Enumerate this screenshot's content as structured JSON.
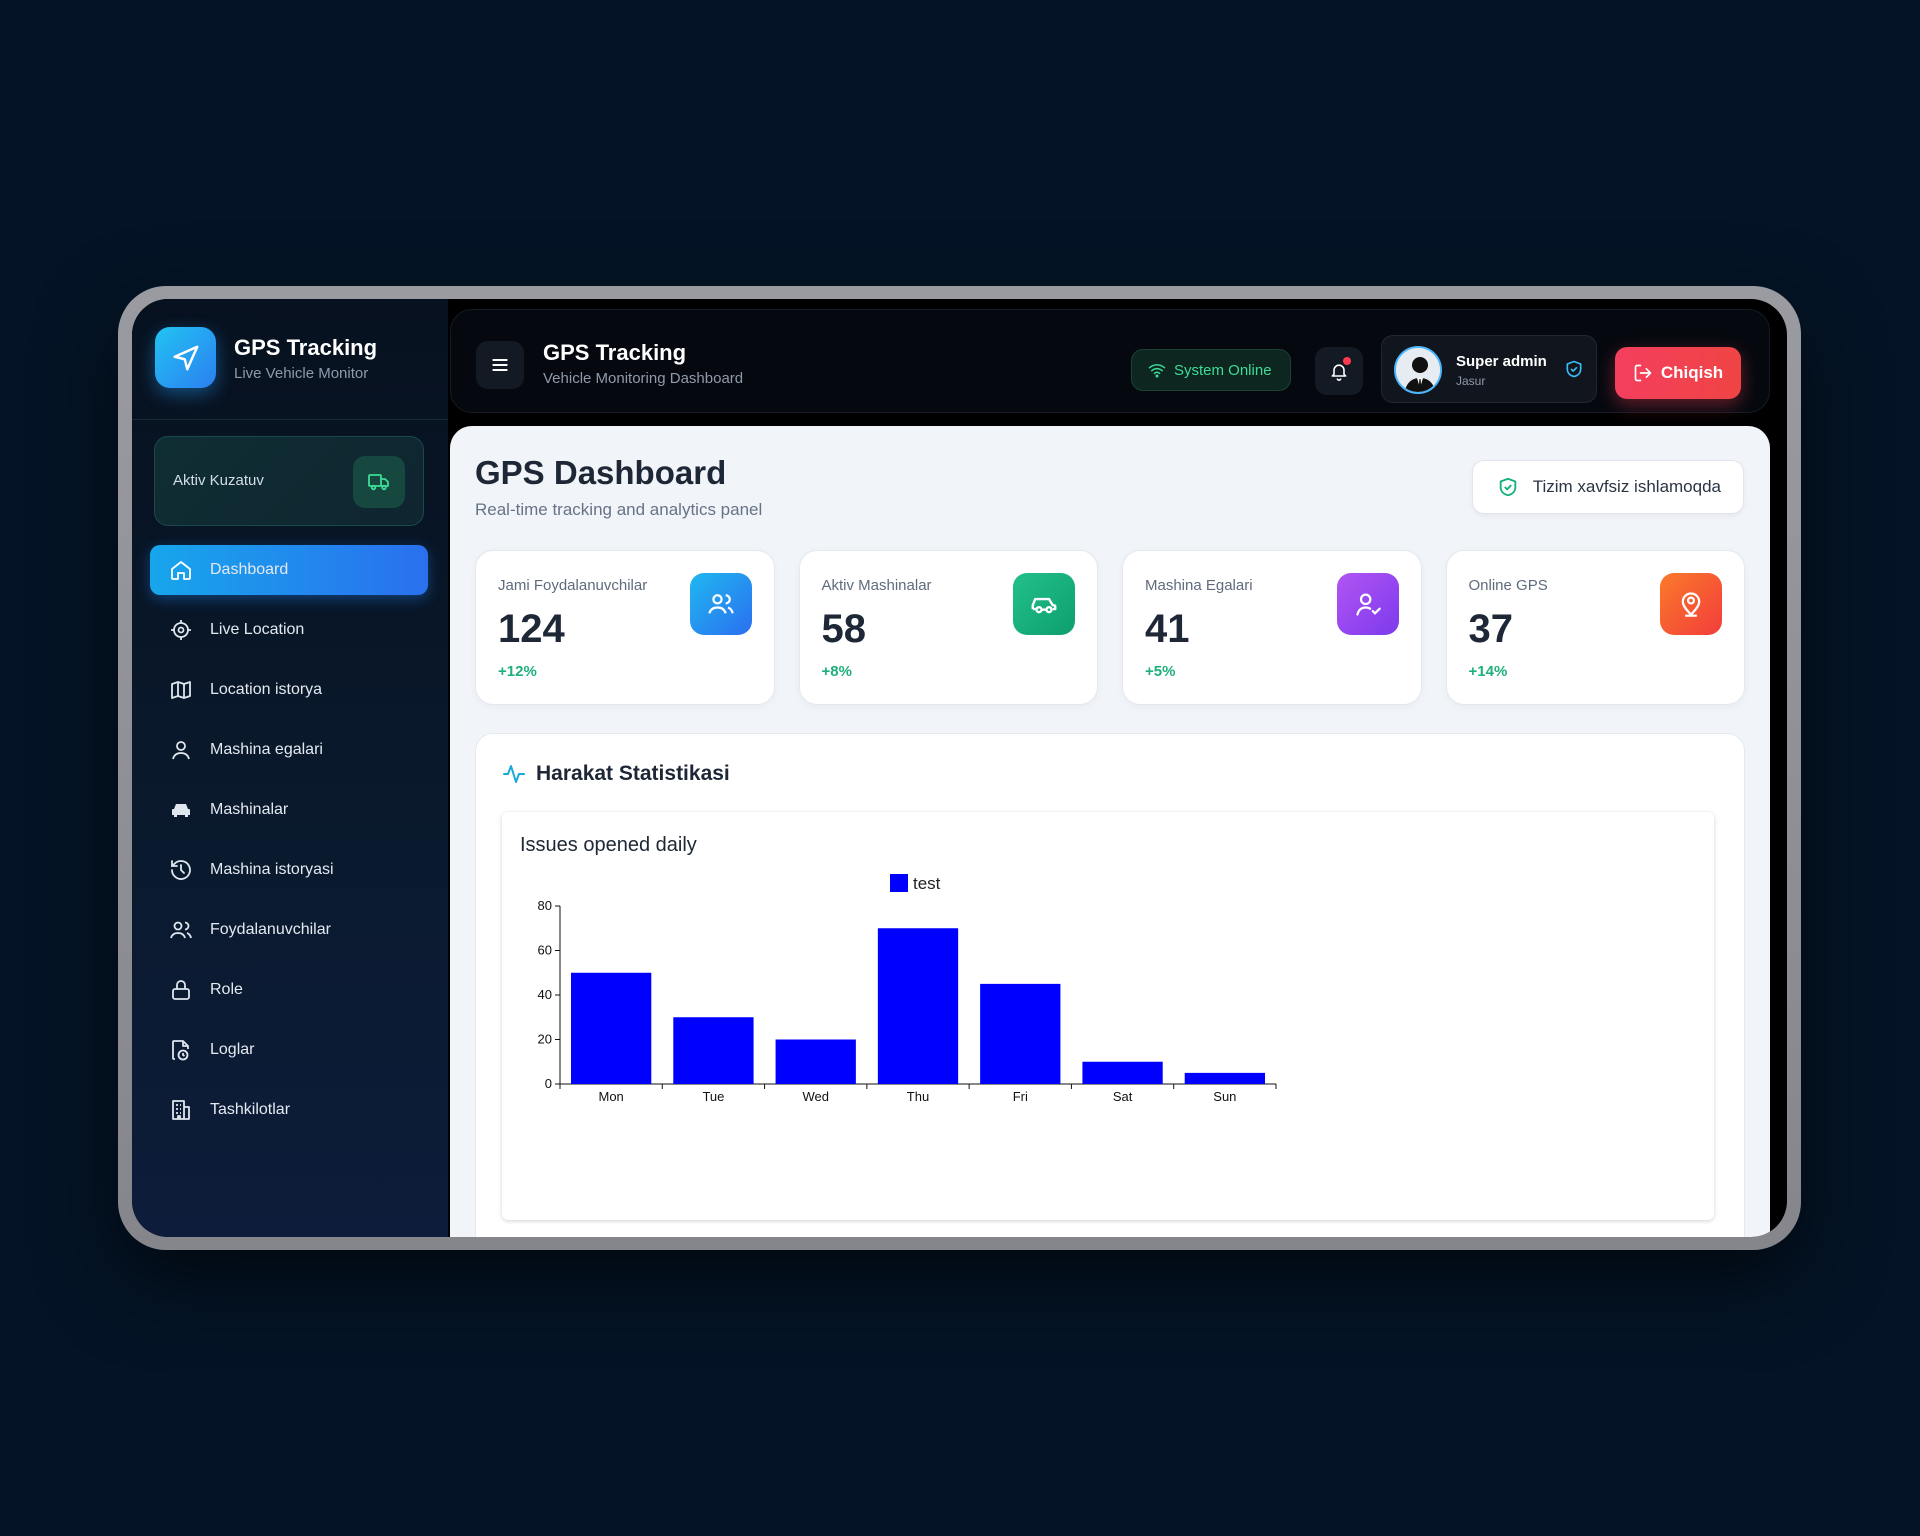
{
  "sidebar": {
    "brand_title": "GPS Tracking",
    "brand_subtitle": "Live Vehicle Monitor",
    "aktiv_label": "Aktiv Kuzatuv",
    "items": [
      {
        "label": "Dashboard",
        "icon": "home-icon",
        "active": true
      },
      {
        "label": "Live Location",
        "icon": "crosshair-icon"
      },
      {
        "label": "Location istorya",
        "icon": "map-icon"
      },
      {
        "label": "Mashina egalari",
        "icon": "user-icon"
      },
      {
        "label": "Mashinalar",
        "icon": "car-icon"
      },
      {
        "label": "Mashina istoryasi",
        "icon": "history-icon"
      },
      {
        "label": "Foydalanuvchilar",
        "icon": "users-icon"
      },
      {
        "label": "Role",
        "icon": "lock-icon"
      },
      {
        "label": "Loglar",
        "icon": "file-clock-icon"
      },
      {
        "label": "Tashkilotlar",
        "icon": "building-icon"
      }
    ]
  },
  "header": {
    "title": "GPS Tracking",
    "subtitle": "Vehicle Monitoring Dashboard",
    "status": "System Online",
    "user_name": "Super admin",
    "user_role": "Jasur",
    "logout_label": "Chiqish"
  },
  "main": {
    "title": "GPS Dashboard",
    "subtitle": "Real-time tracking and analytics panel",
    "secure_label": "Tizim xavfsiz ishlamoqda",
    "cards": [
      {
        "label": "Jami Foydalanuvchilar",
        "value": "124",
        "trend": "+12%",
        "icon": "users-icon",
        "color": "#2b8cf0"
      },
      {
        "label": "Aktiv Mashinalar",
        "value": "58",
        "trend": "+8%",
        "icon": "car-icon",
        "color": "#14b07a"
      },
      {
        "label": "Mashina Egalari",
        "value": "41",
        "trend": "+5%",
        "icon": "user-check-icon",
        "color": "#9b4cf0"
      },
      {
        "label": "Online GPS",
        "value": "37",
        "trend": "+14%",
        "icon": "map-pin-user-icon",
        "color": "#f5582a"
      }
    ],
    "stats_title": "Harakat Statistikasi"
  },
  "chart_data": {
    "type": "bar",
    "title": "Issues opened daily",
    "categories": [
      "Mon",
      "Tue",
      "Wed",
      "Thu",
      "Fri",
      "Sat",
      "Sun"
    ],
    "series": [
      {
        "name": "test",
        "values": [
          50,
          30,
          20,
          70,
          45,
          10,
          5
        ],
        "color": "#0000ff"
      }
    ],
    "ylim": [
      0,
      80
    ],
    "yticks": [
      0,
      20,
      40,
      60,
      80
    ],
    "legend": "top-center",
    "grid": false
  }
}
